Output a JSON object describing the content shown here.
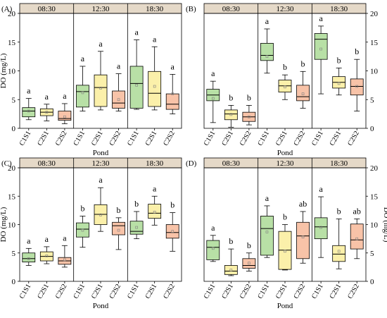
{
  "chart_data": [
    {
      "type": "box",
      "panel_label": "(A)",
      "time_labels": [
        "08:30",
        "12:30",
        "18:30"
      ],
      "categories": [
        "C1S1",
        "C2S1",
        "C2S2"
      ],
      "xlabel": "Pond",
      "ylabel": "DO  (mg/L)",
      "ylim": [
        0,
        20
      ],
      "yticks": [
        0,
        5,
        10,
        15,
        20
      ],
      "y_axis_side": "left",
      "groups": [
        {
          "time": "08:30",
          "boxes": [
            {
              "cat": "C1S1",
              "min": 1.5,
              "q1": 2.0,
              "median": 3.0,
              "q3": 3.6,
              "max": 5.2,
              "mean": 3.0,
              "letter": "a"
            },
            {
              "cat": "C2S1",
              "min": 1.3,
              "q1": 2.2,
              "median": 2.8,
              "q3": 3.4,
              "max": 4.2,
              "mean": 2.8,
              "letter": "a"
            },
            {
              "cat": "C2S2",
              "min": 0.8,
              "q1": 1.4,
              "median": 1.7,
              "q3": 3.0,
              "max": 4.3,
              "mean": 2.0,
              "letter": "a"
            }
          ]
        },
        {
          "time": "12:30",
          "boxes": [
            {
              "cat": "C1S1",
              "min": 3.0,
              "q1": 3.7,
              "median": 6.4,
              "q3": 7.5,
              "max": 10.8,
              "mean": 6.2,
              "letter": "a"
            },
            {
              "cat": "C2S1",
              "min": 3.2,
              "q1": 3.8,
              "median": 7.1,
              "q3": 9.3,
              "max": 13.4,
              "mean": 7.0,
              "letter": "a"
            },
            {
              "cat": "C2S2",
              "min": 3.0,
              "q1": 3.5,
              "median": 4.4,
              "q3": 6.5,
              "max": 9.5,
              "mean": 5.0,
              "letter": "a"
            }
          ]
        },
        {
          "time": "18:30",
          "boxes": [
            {
              "cat": "C1S1",
              "min": 3.3,
              "q1": 3.5,
              "median": 7.8,
              "q3": 10.8,
              "max": 15.4,
              "mean": 7.5,
              "letter": "a"
            },
            {
              "cat": "C2S1",
              "min": 3.2,
              "q1": 3.8,
              "median": 6.1,
              "q3": 9.9,
              "max": 14.2,
              "mean": 7.3,
              "letter": "a"
            },
            {
              "cat": "C2S2",
              "min": 2.5,
              "q1": 3.3,
              "median": 4.2,
              "q3": 6.0,
              "max": 9.4,
              "mean": 6.0,
              "letter": "a"
            }
          ]
        }
      ]
    },
    {
      "type": "box",
      "panel_label": "(B)",
      "time_labels": [
        "08:30",
        "12:30",
        "18:30"
      ],
      "categories": [
        "C1S1",
        "C2S1",
        "C2S2"
      ],
      "xlabel": "Pond",
      "ylabel": "",
      "ylim": [
        0,
        20
      ],
      "yticks": [
        0,
        5,
        10,
        15,
        20
      ],
      "y_axis_side": "right",
      "groups": [
        {
          "time": "08:30",
          "boxes": [
            {
              "cat": "C1S1",
              "min": 1.0,
              "q1": 4.8,
              "median": 5.8,
              "q3": 6.8,
              "max": 8.2,
              "mean": 5.2,
              "letter": "a"
            },
            {
              "cat": "C2S1",
              "min": 0.2,
              "q1": 1.5,
              "median": 2.5,
              "q3": 3.2,
              "max": 4.0,
              "mean": 2.4,
              "letter": "b"
            },
            {
              "cat": "C2S2",
              "min": 0.6,
              "q1": 1.2,
              "median": 2.0,
              "q3": 2.8,
              "max": 4.0,
              "mean": 2.0,
              "letter": "b"
            }
          ]
        },
        {
          "time": "12:30",
          "boxes": [
            {
              "cat": "C1S1",
              "min": 9.6,
              "q1": 11.8,
              "median": 12.7,
              "q3": 14.8,
              "max": 17.3,
              "mean": 12.5,
              "letter": "a"
            },
            {
              "cat": "C2S1",
              "min": 5.0,
              "q1": 6.3,
              "median": 7.4,
              "q3": 8.4,
              "max": 9.3,
              "mean": 7.2,
              "letter": "b"
            },
            {
              "cat": "C2S2",
              "min": 3.5,
              "q1": 4.8,
              "median": 5.5,
              "q3": 7.5,
              "max": 9.9,
              "mean": 6.0,
              "letter": "b"
            }
          ]
        },
        {
          "time": "18:30",
          "boxes": [
            {
              "cat": "C1S1",
              "min": 6.0,
              "q1": 12.0,
              "median": 15.5,
              "q3": 16.5,
              "max": 17.8,
              "mean": 13.8,
              "letter": "a"
            },
            {
              "cat": "C2S1",
              "min": 5.8,
              "q1": 7.0,
              "median": 8.0,
              "q3": 9.0,
              "max": 10.5,
              "mean": 7.8,
              "letter": "b"
            },
            {
              "cat": "C2S2",
              "min": 3.0,
              "q1": 5.8,
              "median": 7.3,
              "q3": 8.6,
              "max": 12.0,
              "mean": 7.3,
              "letter": "b"
            }
          ]
        }
      ]
    },
    {
      "type": "box",
      "panel_label": "(C)",
      "time_labels": [
        "08:30",
        "12:30",
        "18:30"
      ],
      "categories": [
        "C1S1",
        "C2S1",
        "C2S2"
      ],
      "xlabel": "Pond",
      "ylabel": "DO  (mg/L)",
      "ylim": [
        0,
        20
      ],
      "yticks": [
        0,
        5,
        10,
        15,
        20
      ],
      "y_axis_side": "left",
      "groups": [
        {
          "time": "08:30",
          "boxes": [
            {
              "cat": "C1S1",
              "min": 2.8,
              "q1": 3.4,
              "median": 4.0,
              "q3": 5.0,
              "max": 5.8,
              "mean": 4.0,
              "letter": "a"
            },
            {
              "cat": "C2S1",
              "min": 3.1,
              "q1": 3.6,
              "median": 4.4,
              "q3": 5.2,
              "max": 6.1,
              "mean": 4.5,
              "letter": "a"
            },
            {
              "cat": "C2S2",
              "min": 2.5,
              "q1": 3.0,
              "median": 3.6,
              "q3": 4.2,
              "max": 6.3,
              "mean": 3.8,
              "letter": "a"
            }
          ]
        },
        {
          "time": "12:30",
          "boxes": [
            {
              "cat": "C1S1",
              "min": 6.0,
              "q1": 7.8,
              "median": 9.2,
              "q3": 10.3,
              "max": 11.5,
              "mean": 9.0,
              "letter": "b"
            },
            {
              "cat": "C2S1",
              "min": 8.8,
              "q1": 10.0,
              "median": 11.8,
              "q3": 13.5,
              "max": 16.5,
              "mean": 11.7,
              "letter": "a"
            },
            {
              "cat": "C2S2",
              "min": 5.6,
              "q1": 8.2,
              "median": 9.8,
              "q3": 10.4,
              "max": 11.2,
              "mean": 9.0,
              "letter": "b"
            }
          ]
        },
        {
          "time": "18:30",
          "boxes": [
            {
              "cat": "C1S1",
              "min": 7.5,
              "q1": 8.3,
              "median": 8.8,
              "q3": 10.6,
              "max": 12.3,
              "mean": 9.5,
              "letter": "b"
            },
            {
              "cat": "C2S1",
              "min": 9.9,
              "q1": 11.1,
              "median": 12.0,
              "q3": 13.6,
              "max": 15.0,
              "mean": 12.2,
              "letter": "a"
            },
            {
              "cat": "C2S2",
              "min": 5.3,
              "q1": 7.6,
              "median": 8.6,
              "q3": 10.0,
              "max": 12.1,
              "mean": 8.8,
              "letter": "b"
            }
          ]
        }
      ]
    },
    {
      "type": "box",
      "panel_label": "(D)",
      "time_labels": [
        "08:30",
        "12:30",
        "18:30"
      ],
      "categories": [
        "C1S1",
        "C2S1",
        "C2S2"
      ],
      "xlabel": "Pond",
      "ylabel": "DO  (mg/L)",
      "ylim": [
        0,
        20
      ],
      "yticks": [
        0,
        5,
        10,
        15,
        20
      ],
      "y_axis_side": "right",
      "groups": [
        {
          "time": "08:30",
          "boxes": [
            {
              "cat": "C1S1",
              "min": 3.5,
              "q1": 3.8,
              "median": 6.0,
              "q3": 7.2,
              "max": 8.1,
              "mean": 5.8,
              "letter": "a"
            },
            {
              "cat": "C2S1",
              "min": 1.0,
              "q1": 1.2,
              "median": 1.8,
              "q3": 2.8,
              "max": 5.7,
              "mean": 2.0,
              "letter": "b"
            },
            {
              "cat": "C2S2",
              "min": 1.8,
              "q1": 2.3,
              "median": 2.8,
              "q3": 4.0,
              "max": 5.0,
              "mean": 3.2,
              "letter": "b"
            }
          ]
        },
        {
          "time": "12:30",
          "boxes": [
            {
              "cat": "C1S1",
              "min": 4.2,
              "q1": 4.6,
              "median": 9.3,
              "q3": 11.5,
              "max": 13.3,
              "mean": 8.7,
              "letter": "a"
            },
            {
              "cat": "C2S1",
              "min": 2.0,
              "q1": 2.1,
              "median": 5.5,
              "q3": 8.8,
              "max": 10.0,
              "mean": 5.3,
              "letter": "b"
            },
            {
              "cat": "C2S2",
              "min": 3.2,
              "q1": 4.0,
              "median": 8.0,
              "q3": 10.4,
              "max": 12.3,
              "mean": 7.8,
              "letter": "ab"
            }
          ]
        },
        {
          "time": "18:30",
          "boxes": [
            {
              "cat": "C1S1",
              "min": 4.2,
              "q1": 7.5,
              "median": 9.6,
              "q3": 11.2,
              "max": 14.9,
              "mean": 9.5,
              "letter": "a"
            },
            {
              "cat": "C2S1",
              "min": 2.2,
              "q1": 3.5,
              "median": 4.8,
              "q3": 6.3,
              "max": 11.0,
              "mean": 5.3,
              "letter": "b"
            },
            {
              "cat": "C2S2",
              "min": 4.0,
              "q1": 5.7,
              "median": 7.3,
              "q3": 10.1,
              "max": 11.0,
              "mean": 7.5,
              "letter": "ab"
            }
          ]
        }
      ]
    }
  ],
  "colors": {
    "C1S1": "#b8e0a6",
    "C2S1": "#fbf0aa",
    "C2S2": "#f8c3a8",
    "header": "#e5d9c8",
    "mean_marker": "#808080"
  }
}
